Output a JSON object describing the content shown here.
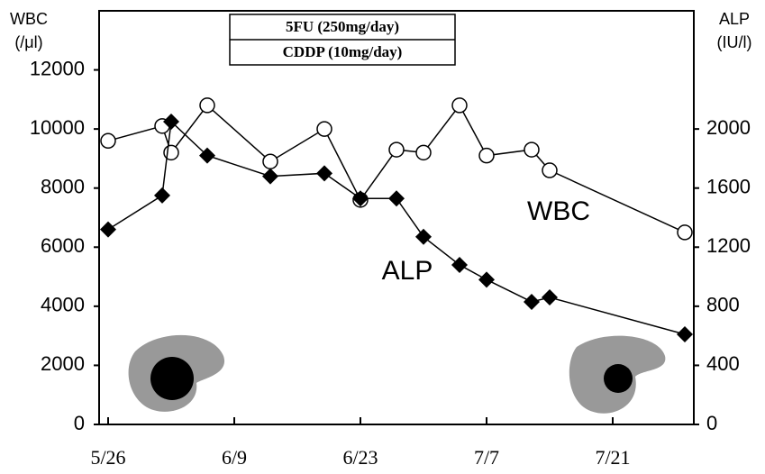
{
  "chart_data": {
    "type": "line",
    "ylabel": "WBC",
    "yunit": "(/μl)",
    "y2label": "ALP",
    "y2unit": "(IU/l)",
    "regimen": [
      "5FU (250mg/day)",
      "CDDP (10mg/day)"
    ],
    "x": [
      "5/26",
      "6/1",
      "6/2",
      "6/6",
      "6/13",
      "6/19",
      "6/23",
      "6/27",
      "6/30",
      "7/4",
      "7/7",
      "7/12",
      "7/14",
      "7/29"
    ],
    "xlim": [
      "5/25",
      "7/30"
    ],
    "xticks": [
      "5/26",
      "6/9",
      "6/23",
      "7/7",
      "7/21"
    ],
    "ylim": [
      0,
      14000
    ],
    "yticks": [
      0,
      2000,
      4000,
      6000,
      8000,
      10000,
      12000
    ],
    "y2lim": [
      0,
      2800
    ],
    "y2ticks": [
      0,
      400,
      800,
      1200,
      1600,
      2000
    ],
    "series": [
      {
        "name": "WBC",
        "color": "#000000",
        "marker": "circle",
        "values": [
          9600,
          10100,
          9200,
          10800,
          8900,
          10000,
          7600,
          9300,
          9200,
          10800,
          9100,
          9300,
          8600,
          6500
        ]
      },
      {
        "name": "ALP",
        "color": "#000000",
        "marker": "diamond",
        "axis": "y2",
        "values": [
          1320,
          1550,
          2050,
          1820,
          1680,
          1700,
          1530,
          1530,
          1270,
          1080,
          980,
          830,
          860,
          610
        ]
      }
    ]
  }
}
